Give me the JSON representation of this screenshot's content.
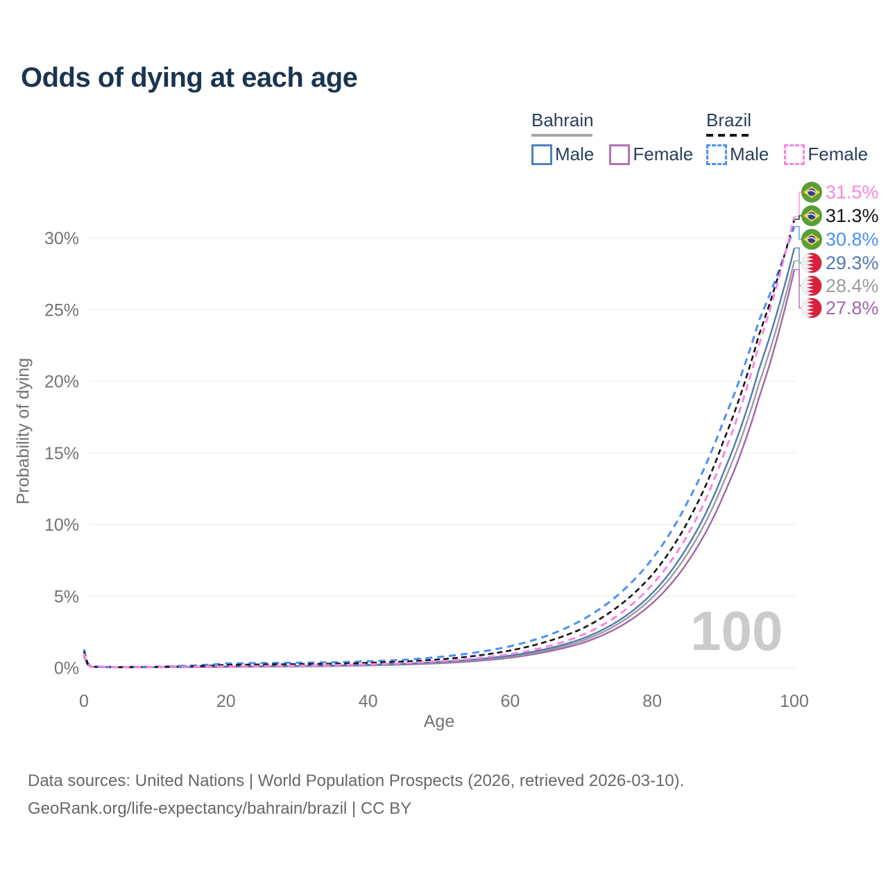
{
  "title": "Odds of dying at each age",
  "watermark": "100",
  "legend": {
    "groups": [
      {
        "name": "Bahrain",
        "underline_style": "solid",
        "underline_color": "#a6a6a6",
        "items": [
          {
            "label": "Male",
            "color": "#4e7fc1",
            "dashed": false
          },
          {
            "label": "Female",
            "color": "#b273b5",
            "dashed": false
          }
        ]
      },
      {
        "name": "Brazil",
        "underline_style": "dashed",
        "underline_color": "#141414",
        "items": [
          {
            "label": "Male",
            "color": "#4b90f7",
            "dashed": true
          },
          {
            "label": "Female",
            "color": "#fb85e0",
            "dashed": true
          }
        ]
      }
    ]
  },
  "axes": {
    "x": {
      "title": "Age",
      "tick_values": [
        0,
        20,
        40,
        60,
        80,
        100
      ],
      "tick_labels": [
        "0",
        "20",
        "40",
        "60",
        "80",
        "100"
      ]
    },
    "y": {
      "title": "Probability of dying",
      "tick_values": [
        0,
        5,
        10,
        15,
        20,
        25,
        30
      ],
      "tick_labels": [
        "0%",
        "5%",
        "10%",
        "15%",
        "20%",
        "25%",
        "30%"
      ]
    }
  },
  "chart_data": {
    "type": "line",
    "title": "Odds of dying at each age",
    "xlabel": "Age",
    "ylabel": "Probability of dying",
    "xlim": [
      0,
      100
    ],
    "ylim": [
      0,
      32.5
    ],
    "grid": true,
    "legend_position": "top-right",
    "x": [
      0,
      1,
      5,
      10,
      15,
      20,
      25,
      30,
      35,
      40,
      45,
      50,
      55,
      60,
      65,
      70,
      75,
      80,
      85,
      90,
      95,
      100
    ],
    "series": [
      {
        "name": "Brazil Female",
        "country": "Brazil",
        "sex": "Female",
        "color": "#fb85e0",
        "dash": "10 7",
        "width": 3,
        "values": [
          1.0,
          0.07,
          0.04,
          0.05,
          0.07,
          0.1,
          0.12,
          0.15,
          0.18,
          0.24,
          0.32,
          0.45,
          0.65,
          0.95,
          1.45,
          2.25,
          3.6,
          5.8,
          9.3,
          14.8,
          22.5,
          31.5
        ],
        "end_label": {
          "text": "31.5%",
          "color": "#fb85e0",
          "flag": "brazil"
        }
      },
      {
        "name": "Brazil",
        "country": "Brazil",
        "sex": "Both",
        "color": "#141414",
        "dash": "8 5",
        "width": 2.6,
        "values": [
          1.15,
          0.08,
          0.04,
          0.06,
          0.1,
          0.2,
          0.23,
          0.25,
          0.28,
          0.34,
          0.43,
          0.58,
          0.82,
          1.2,
          1.8,
          2.7,
          4.2,
          6.5,
          10.2,
          15.8,
          23.2,
          31.3
        ],
        "end_label": {
          "text": "31.3%",
          "color": "#141414",
          "flag": "brazil"
        }
      },
      {
        "name": "Brazil Male",
        "country": "Brazil",
        "sex": "Male",
        "color": "#4b90f7",
        "dash": "10 7",
        "width": 3,
        "values": [
          1.3,
          0.09,
          0.05,
          0.07,
          0.15,
          0.3,
          0.33,
          0.35,
          0.38,
          0.45,
          0.55,
          0.75,
          1.05,
          1.5,
          2.2,
          3.3,
          5.0,
          7.6,
          11.6,
          17.2,
          24.2,
          30.8
        ],
        "end_label": {
          "text": "30.8%",
          "color": "#4b90f7",
          "flag": "brazil"
        }
      },
      {
        "name": "Bahrain Male",
        "country": "Bahrain",
        "sex": "Male",
        "color": "#4f7ab0",
        "dash": null,
        "width": 2.4,
        "values": [
          0.9,
          0.06,
          0.03,
          0.04,
          0.06,
          0.09,
          0.11,
          0.13,
          0.16,
          0.21,
          0.28,
          0.4,
          0.58,
          0.85,
          1.3,
          2.0,
          3.2,
          5.2,
          8.5,
          13.6,
          20.8,
          29.3
        ],
        "end_label": {
          "text": "29.3%",
          "color": "#4f7ab0",
          "flag": "bahrain"
        }
      },
      {
        "name": "Bahrain",
        "country": "Bahrain",
        "sex": "Both",
        "color": "#9c9c9c",
        "dash": null,
        "width": 2.4,
        "values": [
          0.85,
          0.06,
          0.03,
          0.04,
          0.05,
          0.08,
          0.1,
          0.12,
          0.14,
          0.19,
          0.25,
          0.36,
          0.52,
          0.78,
          1.2,
          1.85,
          3.0,
          4.9,
          8.0,
          12.9,
          19.8,
          28.4
        ],
        "end_label": {
          "text": "28.4%",
          "color": "#9c9c9c",
          "flag": "bahrain"
        }
      },
      {
        "name": "Bahrain Female",
        "country": "Bahrain",
        "sex": "Female",
        "color": "#a266a8",
        "dash": null,
        "width": 2.4,
        "values": [
          0.8,
          0.05,
          0.02,
          0.03,
          0.04,
          0.06,
          0.08,
          0.1,
          0.12,
          0.16,
          0.22,
          0.31,
          0.46,
          0.7,
          1.1,
          1.7,
          2.75,
          4.5,
          7.4,
          12.0,
          18.8,
          27.8
        ],
        "end_label": {
          "text": "27.8%",
          "color": "#a266a8",
          "flag": "bahrain"
        }
      }
    ]
  },
  "footer": {
    "line1": "Data sources: United Nations | World Population Prospects (2026, retrieved 2026-03-10).",
    "line2": "GeoRank.org/life-expectancy/bahrain/brazil | CC BY"
  },
  "colors": {
    "title_text": "#1b3550",
    "legend_text": "#2a3f5c",
    "axis_text": "#737373",
    "grid": "#ececec",
    "footer_text": "#676767",
    "watermark": "#cbcbcb"
  }
}
